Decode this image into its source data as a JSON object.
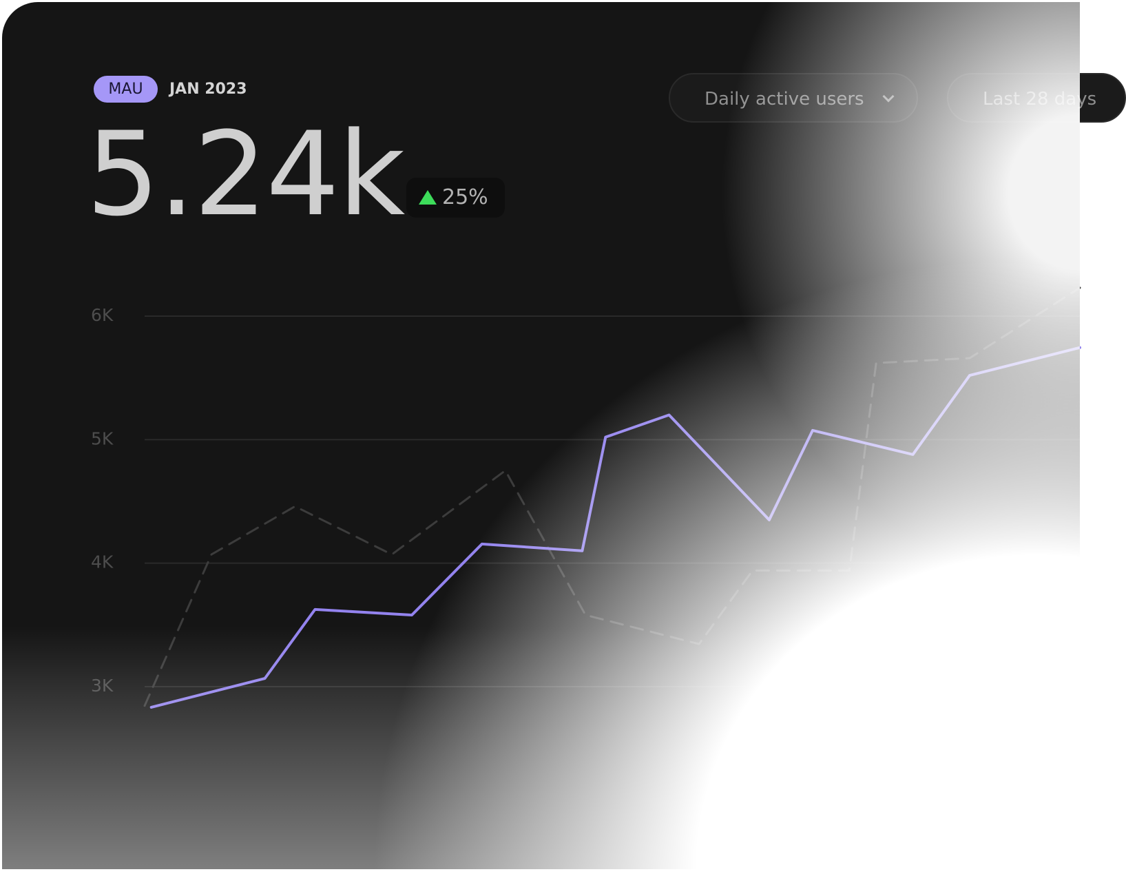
{
  "header": {
    "badge": "MAU",
    "period": "JAN 2023",
    "metric": "5.24k",
    "change": "25%"
  },
  "controls": {
    "metric_select": "Daily active users",
    "range_select": "Last 28 days"
  },
  "chart_data": {
    "type": "line",
    "xlim": [
      0,
      28
    ],
    "ylim": [
      2700,
      6300
    ],
    "yticks": [
      {
        "value": 3000,
        "label": "3K"
      },
      {
        "value": 4000,
        "label": "4K"
      },
      {
        "value": 5000,
        "label": "5K"
      },
      {
        "value": 6000,
        "label": "6K"
      }
    ],
    "grid": true,
    "series": [
      {
        "color": "#9383ee",
        "dashed": false,
        "x": [
          0.2,
          3.6,
          5.1,
          8.0,
          10.1,
          13.1,
          13.8,
          15.7,
          18.7,
          20.0,
          23.0,
          24.7,
          28
        ],
        "values": [
          2833,
          3067,
          3625,
          3580,
          4155,
          4100,
          5020,
          5200,
          4350,
          5075,
          4880,
          5520,
          5745
        ]
      },
      {
        "color": "#3c3c3c",
        "dashed": true,
        "x": [
          0,
          2.0,
          4.5,
          7.4,
          10.8,
          13.2,
          16.6,
          18.2,
          21.1,
          21.9,
          24.7,
          28
        ],
        "values": [
          2845,
          4070,
          4460,
          4070,
          4750,
          3580,
          3345,
          3940,
          3940,
          5620,
          5660,
          6230
        ]
      }
    ]
  }
}
